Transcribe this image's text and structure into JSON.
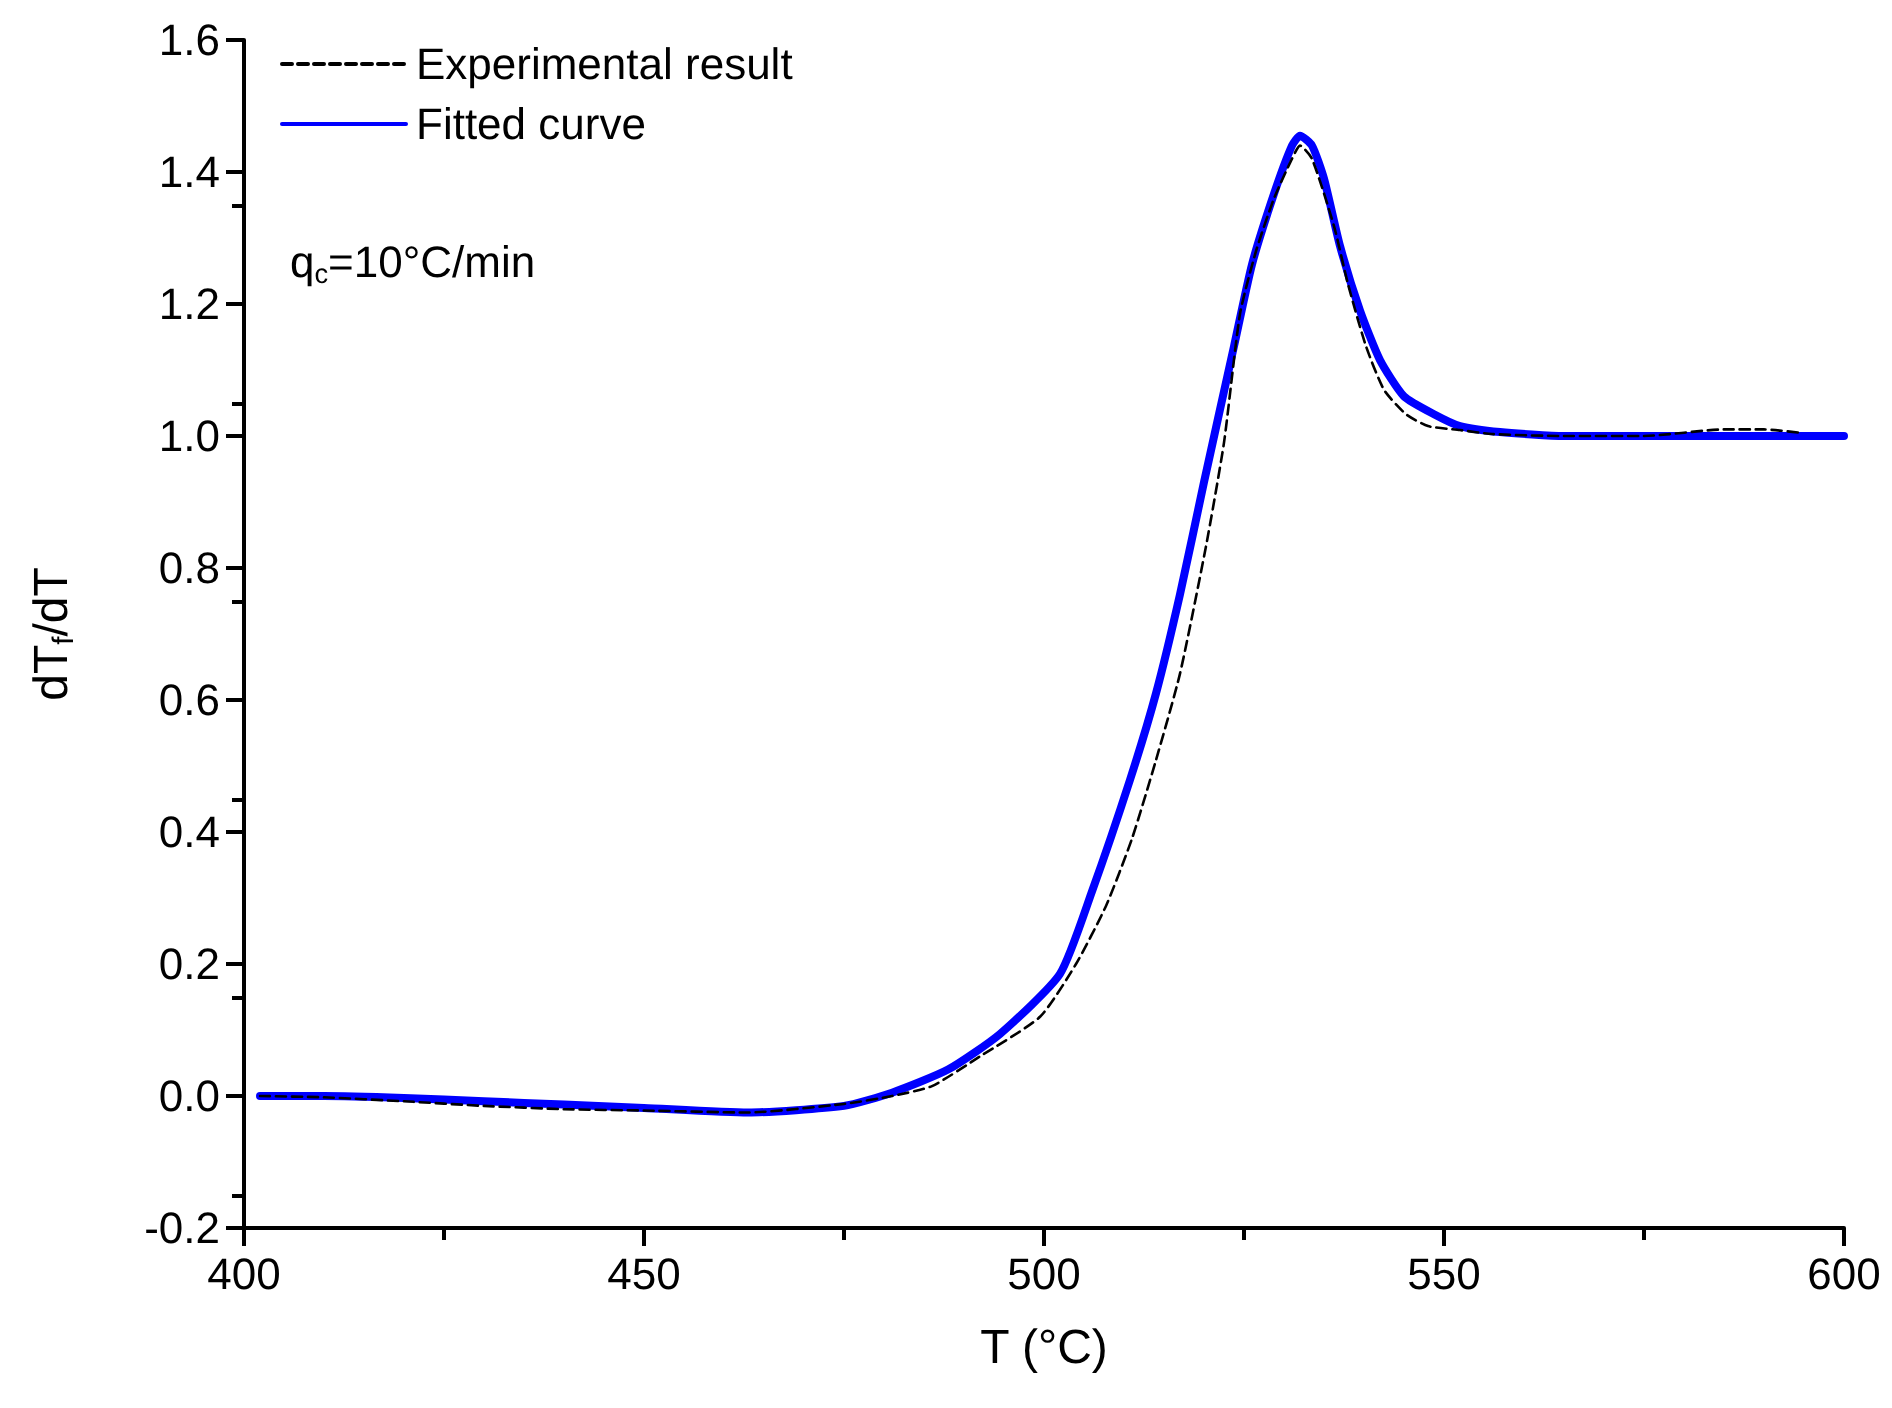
{
  "chart_data": {
    "type": "line",
    "xlabel": "T (°C)",
    "ylabel": "dT$_{f}$/dT",
    "annotations": [
      "q$_{c}$=10°C/min"
    ],
    "xlim": [
      400,
      600
    ],
    "xticks": [
      400,
      450,
      500,
      550,
      600
    ],
    "ylim": [
      -0.2,
      1.6
    ],
    "yticks": [
      {
        "value": -0.2,
        "label": "-0.2"
      },
      {
        "value": 0,
        "label": "0.0"
      },
      {
        "value": 0.2,
        "label": "0.2"
      },
      {
        "value": 0.4,
        "label": "0.4"
      },
      {
        "value": 0.6,
        "label": "0.6"
      },
      {
        "value": 0.8,
        "label": "0.8"
      },
      {
        "value": 1,
        "label": "1.0"
      },
      {
        "value": 1.2,
        "label": "1.2"
      },
      {
        "value": 1.4,
        "label": "1.4"
      },
      {
        "value": 1.6,
        "label": "1.6"
      }
    ],
    "grid": false,
    "legend": "top left",
    "marker": "none",
    "series": [
      {
        "name": "Experimental result",
        "color": "#000000",
        "line_style": "dashed",
        "x": [
          402,
          410,
          420,
          430,
          440,
          450,
          463,
          475,
          481,
          486,
          492,
          499.5,
          504,
          507.75,
          511,
          514,
          517,
          520.25,
          522.5,
          524.5,
          526.5,
          528.75,
          531,
          532,
          533.5,
          536.25,
          538,
          540.25,
          542.5,
          545.25,
          548,
          552,
          556,
          565,
          575,
          585,
          590,
          594.5
        ],
        "values": [
          0,
          -0.002,
          -0.008,
          -0.015,
          -0.02,
          -0.022,
          -0.025,
          -0.012,
          0,
          0.015,
          0.06,
          0.12,
          0.2,
          0.288,
          0.39,
          0.509,
          0.64,
          0.833,
          0.99,
          1.185,
          1.28,
          1.36,
          1.42,
          1.44,
          1.42,
          1.318,
          1.23,
          1.136,
          1.07,
          1.033,
          1.015,
          1.009,
          1.003,
          1,
          1,
          1.01,
          1.01,
          1.005
        ]
      },
      {
        "name": "Fitted curve",
        "color": "#0000ff",
        "line_style": "solid",
        "x": [
          402,
          410,
          420,
          430,
          440,
          450,
          463,
          475,
          481,
          488,
          494.5,
          502,
          506,
          510.75,
          514,
          517,
          520,
          523.75,
          526,
          528.75,
          531,
          532,
          533.5,
          535,
          537,
          539.5,
          542,
          545,
          548.75,
          552,
          557,
          565,
          580,
          600
        ],
        "values": [
          0,
          0,
          -0.003,
          -0.008,
          -0.013,
          -0.018,
          -0.025,
          -0.015,
          0.005,
          0.04,
          0.094,
          0.185,
          0.31,
          0.479,
          0.61,
          0.76,
          0.93,
          1.136,
          1.26,
          1.367,
          1.44,
          1.455,
          1.44,
          1.39,
          1.288,
          1.19,
          1.115,
          1.06,
          1.033,
          1.015,
          1.006,
          1,
          1,
          1
        ]
      }
    ]
  }
}
